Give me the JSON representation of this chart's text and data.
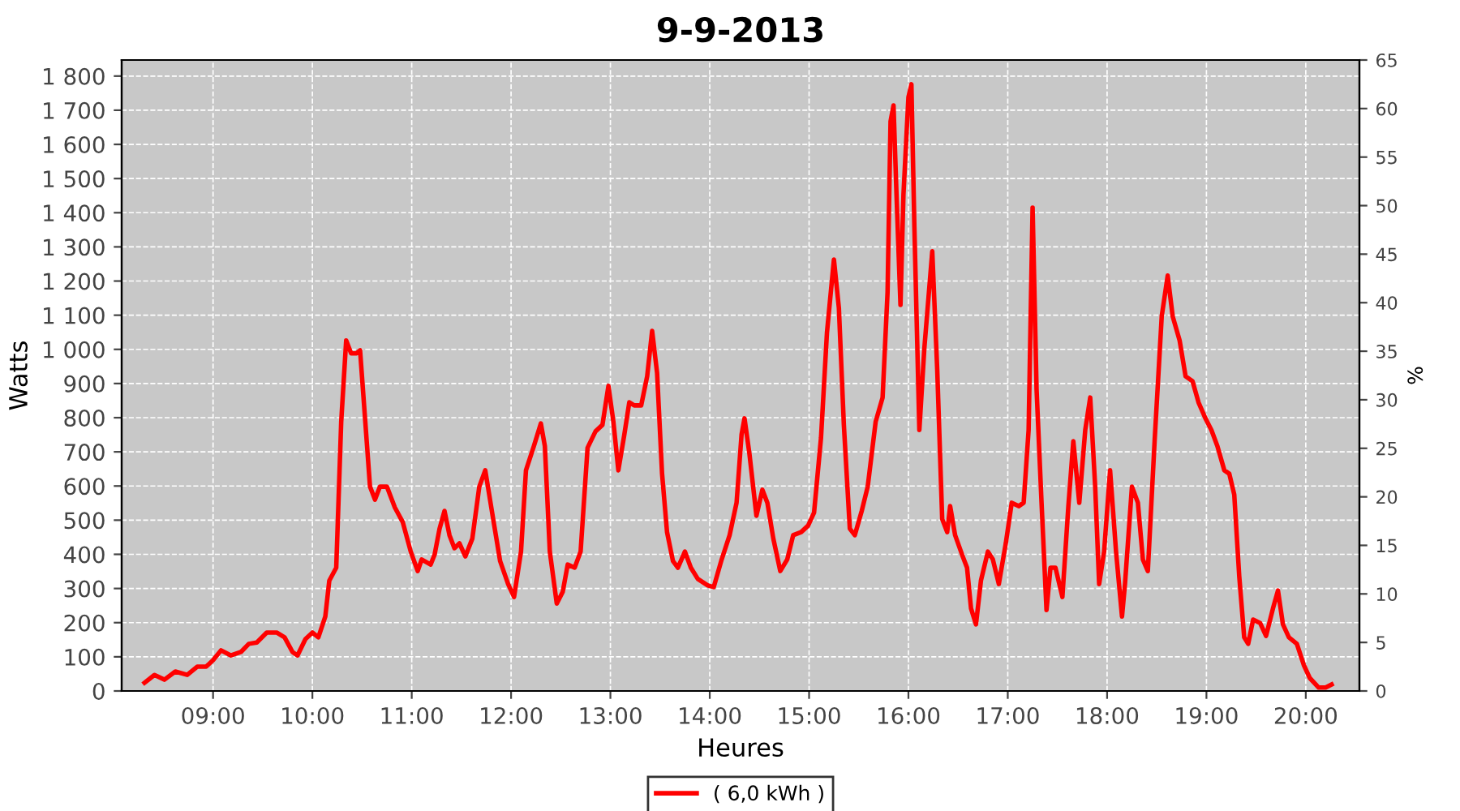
{
  "chart_data": {
    "type": "line",
    "title": "9-9-2013",
    "xlabel": "Heures",
    "ylabel": "Watts",
    "y2label": "%",
    "xlim": [
      8.08,
      20.54
    ],
    "ylim": [
      0,
      1847
    ],
    "y2lim": [
      0,
      65
    ],
    "xticks": [
      {
        "value": 9,
        "label": "09:00"
      },
      {
        "value": 10,
        "label": "10:00"
      },
      {
        "value": 11,
        "label": "11:00"
      },
      {
        "value": 12,
        "label": "12:00"
      },
      {
        "value": 13,
        "label": "13:00"
      },
      {
        "value": 14,
        "label": "14:00"
      },
      {
        "value": 15,
        "label": "15:00"
      },
      {
        "value": 16,
        "label": "16:00"
      },
      {
        "value": 17,
        "label": "17:00"
      },
      {
        "value": 18,
        "label": "18:00"
      },
      {
        "value": 19,
        "label": "19:00"
      },
      {
        "value": 20,
        "label": "20:00"
      }
    ],
    "yticks": [
      0,
      100,
      200,
      300,
      400,
      500,
      600,
      700,
      800,
      900,
      {
        "value": 1000,
        "label": "1 000"
      },
      {
        "value": 1100,
        "label": "1 100"
      },
      {
        "value": 1200,
        "label": "1 200"
      },
      {
        "value": 1300,
        "label": "1 300"
      },
      {
        "value": 1400,
        "label": "1 400"
      },
      {
        "value": 1500,
        "label": "1 500"
      },
      {
        "value": 1600,
        "label": "1 600"
      },
      {
        "value": 1700,
        "label": "1 700"
      },
      {
        "value": 1800,
        "label": "1 800"
      }
    ],
    "y2ticks": [
      0,
      5,
      10,
      15,
      20,
      25,
      30,
      35,
      40,
      45,
      50,
      55,
      60,
      65
    ],
    "grid": true,
    "legend": "bottom",
    "marker": "none",
    "line_style": "solid",
    "series": [
      {
        "name": "( 6,0 kWh )",
        "color": "#ff0000",
        "x": [
          8.31,
          8.41,
          8.51,
          8.62,
          8.74,
          8.84,
          8.93,
          9.0,
          9.08,
          9.18,
          9.28,
          9.36,
          9.44,
          9.54,
          9.64,
          9.72,
          9.8,
          9.85,
          9.93,
          10.0,
          10.06,
          10.13,
          10.17,
          10.24,
          10.29,
          10.34,
          10.39,
          10.44,
          10.48,
          10.53,
          10.58,
          10.63,
          10.68,
          10.75,
          10.83,
          10.91,
          10.99,
          11.06,
          11.1,
          11.19,
          11.23,
          11.28,
          11.33,
          11.38,
          11.43,
          11.48,
          11.54,
          11.61,
          11.68,
          11.74,
          11.82,
          11.89,
          11.97,
          12.03,
          12.1,
          12.15,
          12.23,
          12.3,
          12.34,
          12.39,
          12.46,
          12.52,
          12.57,
          12.64,
          12.7,
          12.77,
          12.85,
          12.92,
          12.98,
          13.03,
          13.08,
          13.14,
          13.19,
          13.24,
          13.31,
          13.37,
          13.42,
          13.47,
          13.52,
          13.57,
          13.63,
          13.68,
          13.75,
          13.81,
          13.88,
          13.98,
          14.04,
          14.12,
          14.2,
          14.27,
          14.32,
          14.35,
          14.4,
          14.47,
          14.53,
          14.58,
          14.64,
          14.71,
          14.78,
          14.84,
          14.92,
          14.99,
          15.05,
          15.12,
          15.18,
          15.25,
          15.3,
          15.35,
          15.41,
          15.46,
          15.53,
          15.59,
          15.67,
          15.74,
          15.79,
          15.82,
          15.85,
          15.88,
          15.92,
          15.95,
          16.0,
          16.03,
          16.06,
          16.11,
          16.16,
          16.24,
          16.29,
          16.34,
          16.39,
          16.42,
          16.47,
          16.54,
          16.59,
          16.63,
          16.68,
          16.73,
          16.8,
          16.85,
          16.91,
          16.98,
          17.04,
          17.11,
          17.16,
          17.21,
          17.25,
          17.29,
          17.34,
          17.39,
          17.43,
          17.48,
          17.55,
          17.61,
          17.66,
          17.72,
          17.78,
          17.83,
          17.88,
          17.92,
          17.97,
          18.03,
          18.09,
          18.15,
          18.18,
          18.25,
          18.31,
          18.36,
          18.41,
          18.48,
          18.55,
          18.61,
          18.66,
          18.73,
          18.79,
          18.86,
          18.92,
          18.99,
          19.05,
          19.11,
          19.18,
          19.23,
          19.28,
          19.33,
          19.38,
          19.42,
          19.47,
          19.54,
          19.6,
          19.67,
          19.72,
          19.77,
          19.83,
          19.91,
          19.98,
          20.04,
          20.13,
          20.2,
          20.26
        ],
        "values": [
          24,
          47,
          33,
          57,
          47,
          71,
          71,
          90,
          119,
          104,
          114,
          138,
          142,
          171,
          171,
          157,
          114,
          104,
          152,
          171,
          157,
          218,
          323,
          361,
          788,
          1026,
          988,
          988,
          997,
          798,
          598,
          560,
          598,
          598,
          537,
          494,
          408,
          351,
          385,
          370,
          399,
          475,
          527,
          456,
          418,
          432,
          394,
          446,
          598,
          646,
          503,
          380,
          313,
          275,
          408,
          646,
          717,
          783,
          717,
          408,
          256,
          290,
          370,
          361,
          408,
          712,
          760,
          779,
          893,
          788,
          646,
          750,
          845,
          836,
          836,
          921,
          1054,
          931,
          636,
          465,
          380,
          361,
          408,
          361,
          328,
          309,
          304,
          385,
          456,
          551,
          750,
          798,
          693,
          513,
          589,
          551,
          446,
          351,
          385,
          456,
          465,
          484,
          522,
          741,
          1049,
          1263,
          1121,
          779,
          475,
          456,
          527,
          598,
          788,
          859,
          1168,
          1667,
          1714,
          1453,
          1130,
          1453,
          1738,
          1776,
          1358,
          764,
          1002,
          1287,
          940,
          503,
          465,
          541,
          456,
          399,
          361,
          242,
          195,
          323,
          408,
          385,
          313,
          432,
          551,
          541,
          551,
          764,
          1415,
          883,
          551,
          237,
          361,
          361,
          275,
          541,
          731,
          551,
          764,
          859,
          598,
          313,
          408,
          646,
          408,
          218,
          313,
          598,
          551,
          385,
          351,
          741,
          1097,
          1216,
          1097,
          1026,
          921,
          907,
          845,
          798,
          764,
          717,
          646,
          636,
          575,
          337,
          157,
          138,
          209,
          199,
          161,
          242,
          294,
          195,
          157,
          138,
          76,
          38,
          10,
          10,
          19
        ]
      }
    ]
  }
}
